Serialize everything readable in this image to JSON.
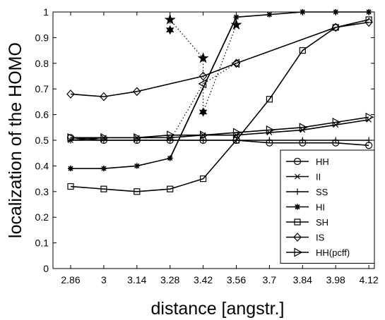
{
  "chart_data": {
    "type": "line",
    "xlabel": "distance [angstr.]",
    "ylabel": "localization of the HOMO",
    "xticks": [
      "2.86",
      "3",
      "3.14",
      "3.28",
      "3.42",
      "3.56",
      "3.7",
      "3.84",
      "3.98",
      "4.12"
    ],
    "yticks": [
      "0",
      "0.1",
      "0.2",
      "0.3",
      "0.4",
      "0.5",
      "0.6",
      "0.7",
      "0.8",
      "0.9",
      "1"
    ],
    "ylim": [
      0,
      1
    ],
    "grid": false,
    "legend_position": "lower-right",
    "series": [
      {
        "name": "HH",
        "marker": "circle",
        "x": [
          2.86,
          3,
          3.14,
          3.28,
          3.42,
          3.56,
          3.7,
          3.84,
          3.98,
          4.12
        ],
        "values": [
          0.51,
          0.5,
          0.5,
          0.5,
          0.5,
          0.5,
          0.49,
          0.49,
          0.49,
          0.48
        ]
      },
      {
        "name": "II",
        "marker": "x",
        "x": [
          2.86,
          3,
          3.14,
          3.28,
          3.42,
          3.56,
          3.7,
          3.84,
          3.98,
          4.12
        ],
        "values": [
          0.5,
          0.51,
          0.51,
          0.51,
          0.52,
          0.52,
          0.53,
          0.54,
          0.56,
          0.58
        ]
      },
      {
        "name": "SS",
        "marker": "plus",
        "x": [
          2.86,
          3,
          3.14,
          3.28,
          3.42,
          3.56,
          3.7,
          3.84,
          3.98,
          4.12
        ],
        "values": [
          0.5,
          0.5,
          0.5,
          0.5,
          0.5,
          0.5,
          0.5,
          0.5,
          0.5,
          0.5
        ]
      },
      {
        "name": "HI",
        "marker": "asterisk",
        "x": [
          2.86,
          3,
          3.14,
          3.28,
          3.56,
          3.7,
          3.84,
          3.98,
          4.12
        ],
        "values": [
          0.39,
          0.39,
          0.4,
          0.43,
          0.98,
          0.99,
          1.0,
          1.0,
          1.0
        ]
      },
      {
        "name": "SH",
        "marker": "square",
        "x": [
          2.86,
          3,
          3.14,
          3.28,
          3.42,
          3.56,
          3.7,
          3.84,
          3.98,
          4.12
        ],
        "values": [
          0.32,
          0.31,
          0.3,
          0.31,
          0.35,
          0.5,
          0.66,
          0.85,
          0.94,
          0.97
        ]
      },
      {
        "name": "IS",
        "marker": "diamond",
        "x": [
          2.86,
          3,
          3.14,
          3.42,
          3.56,
          3.98,
          4.12
        ],
        "values": [
          0.68,
          0.67,
          0.69,
          0.75,
          0.8,
          0.94,
          0.96
        ]
      },
      {
        "name": "HH(pcff)",
        "marker": "triangle-right",
        "x": [
          2.86,
          3,
          3.14,
          3.28,
          3.42,
          3.56,
          3.7,
          3.84,
          3.98,
          4.12
        ],
        "values": [
          0.51,
          0.51,
          0.51,
          0.52,
          0.52,
          0.53,
          0.54,
          0.55,
          0.57,
          0.59
        ]
      }
    ],
    "extra_lines": [
      {
        "style": "solid",
        "x": [
          3.28,
          3.56
        ],
        "values": [
          0.43,
          0.98
        ]
      },
      {
        "style": "dotted",
        "x": [
          3.28,
          3.28,
          3.42,
          3.42,
          3.56
        ],
        "values": [
          0.93,
          0.97,
          0.82,
          0.61,
          0.95
        ]
      },
      {
        "style": "dotted",
        "x": [
          3.28,
          3.42,
          3.56
        ],
        "values": [
          0.5,
          0.72,
          0.8
        ]
      }
    ],
    "extra_markers": [
      {
        "marker": "star",
        "x": 3.28,
        "value": 0.97
      },
      {
        "marker": "star",
        "x": 3.42,
        "value": 0.82
      },
      {
        "marker": "star",
        "x": 3.56,
        "value": 0.95
      },
      {
        "marker": "hexagram",
        "x": 3.28,
        "value": 0.93
      },
      {
        "marker": "hexagram",
        "x": 3.42,
        "value": 0.61
      },
      {
        "marker": "triangle-left",
        "x": 3.42,
        "value": 0.72
      },
      {
        "marker": "triangle-left",
        "x": 3.56,
        "value": 0.8
      }
    ]
  }
}
